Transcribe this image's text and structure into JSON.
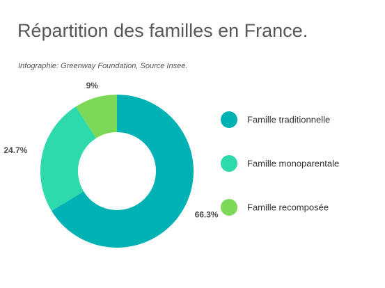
{
  "header": {
    "title": "Répartition des familles en France.",
    "subtitle": "Infographie: Greenway Foundation, Source Insee."
  },
  "chart_data": {
    "type": "pie",
    "donut": true,
    "categories": [
      "Famille traditionnelle",
      "Famille monoparentale",
      "Famille recomposée"
    ],
    "values": [
      66.3,
      24.7,
      9
    ],
    "value_labels": [
      "66.3%",
      "24.7%",
      "9%"
    ],
    "colors": [
      "#00b2b3",
      "#2ed9ab",
      "#7bd957"
    ],
    "legend_position": "right",
    "start": "top, clockwise"
  }
}
